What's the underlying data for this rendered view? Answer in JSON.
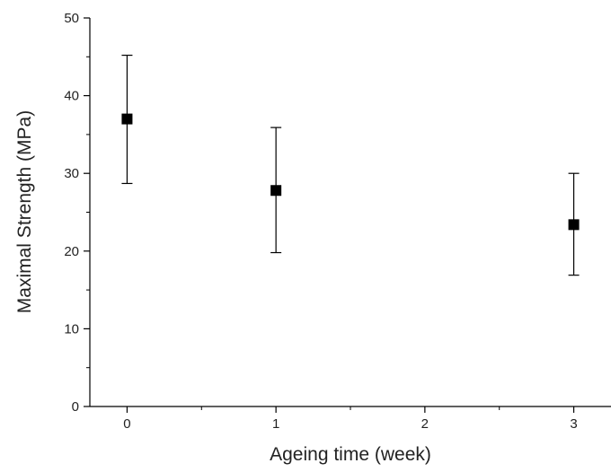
{
  "chart_data": {
    "type": "scatter",
    "title": "",
    "xlabel": "Ageing time (week)",
    "ylabel": "Maximal Strength (MPa)",
    "xlim": [
      -0.25,
      3.25
    ],
    "ylim": [
      0,
      50
    ],
    "x_ticks": [
      0,
      1,
      2,
      3
    ],
    "y_ticks": [
      0,
      10,
      20,
      30,
      40,
      50
    ],
    "grid": false,
    "legend": "none",
    "marker": "square",
    "marker_color": "#000000",
    "series": [
      {
        "points": [
          {
            "x": 0,
            "y": 37.0,
            "err_low": 28.7,
            "err_high": 45.2
          },
          {
            "x": 1,
            "y": 27.8,
            "err_low": 19.8,
            "err_high": 35.9
          },
          {
            "x": 3,
            "y": 23.4,
            "err_low": 16.9,
            "err_high": 30.0
          }
        ]
      }
    ]
  }
}
